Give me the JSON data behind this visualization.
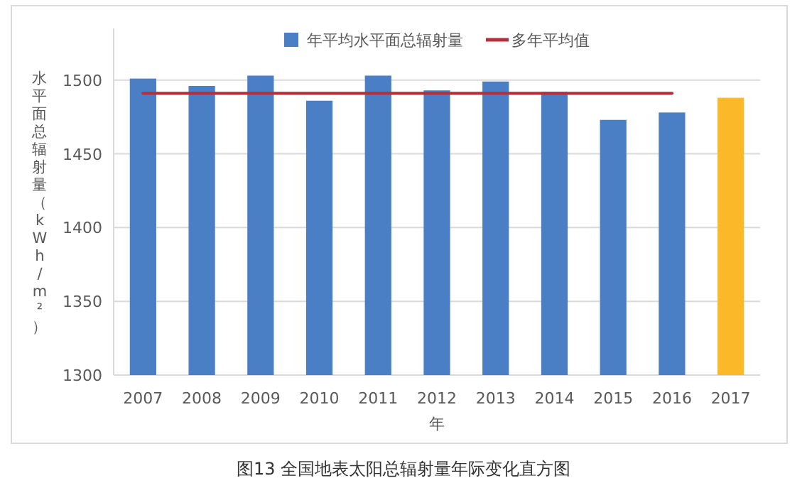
{
  "chart_data": {
    "type": "bar",
    "title": "图13 全国地表太阳总辐射量年际变化直方图",
    "xlabel": "年",
    "ylabel": "水平面总辐射量（kWh/m²）",
    "categories": [
      "2007",
      "2008",
      "2009",
      "2010",
      "2011",
      "2012",
      "2013",
      "2014",
      "2015",
      "2016",
      "2017"
    ],
    "series": [
      {
        "name": "年平均水平面总辐射量",
        "colors": [
          "#4a7fc6",
          "#4a7fc6",
          "#4a7fc6",
          "#4a7fc6",
          "#4a7fc6",
          "#4a7fc6",
          "#4a7fc6",
          "#4a7fc6",
          "#4a7fc6",
          "#4a7fc6",
          "#fbb829"
        ],
        "values": [
          1501,
          1496,
          1503,
          1486,
          1503,
          1493,
          1499,
          1492,
          1473,
          1478,
          1488
        ]
      },
      {
        "name": "多年平均值",
        "type": "line",
        "color": "#b4303c",
        "values": [
          1491,
          1491,
          1491,
          1491,
          1491,
          1491,
          1491,
          1491,
          1491,
          1491,
          null
        ]
      }
    ],
    "ylim": [
      1300,
      1535
    ],
    "yticks": [
      1300,
      1350,
      1400,
      1450,
      1500
    ],
    "grid": "y",
    "legend": "top"
  }
}
